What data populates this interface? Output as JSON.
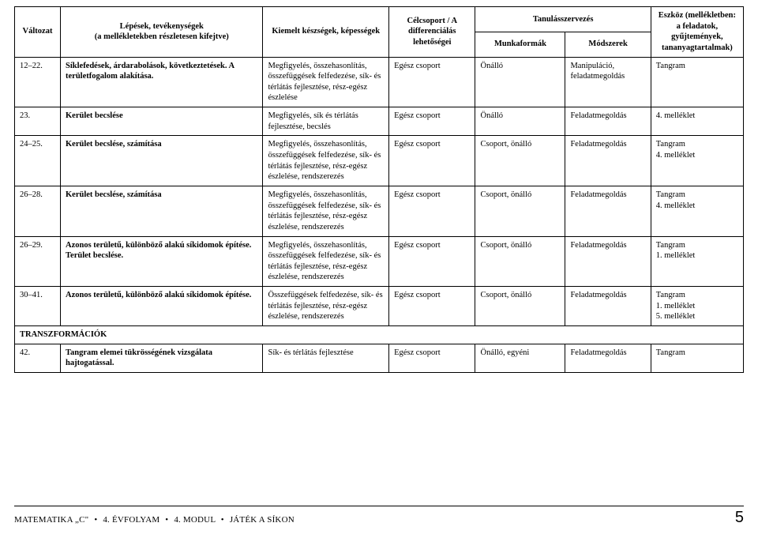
{
  "header": {
    "valtozat": "Változat",
    "lepesek_line1": "Lépések, tevékenységek",
    "lepesek_line2": "(a mellékletekben részletesen kifejtve)",
    "kiemelt": "Kiemelt készségek, képességek",
    "celcsoport": "Célcsoport / A differenciálás lehetőségei",
    "tanulasszervezes": "Tanulásszervezés",
    "munkaformak": "Munkaformák",
    "modszerek": "Módszerek",
    "eszkoz": "Eszköz (mellékletben: a feladatok, gyűjtemények, tananyagtartalmak)"
  },
  "rows": [
    {
      "num": "12–22.",
      "lepesek": "Síklefedések, árdarabolások, következtetések. A területfogalom alakítása.",
      "kiemelt": "Megfigyelés, összehasonlítás, összefüggések felfedezése, sík- és térlátás fejlesztése, rész-egész észlelése",
      "cel": "Egész csoport",
      "munka": "Önálló",
      "mod": "Manipuláció, feladatmegoldás",
      "eszkoz": "Tangram"
    },
    {
      "num": "23.",
      "lepesek": "Kerület becslése",
      "kiemelt": "Megfigyelés, sík és térlátás fejlesztése, becslés",
      "cel": "Egész csoport",
      "munka": "Önálló",
      "mod": "Feladatmegoldás",
      "eszkoz": "4. melléklet"
    },
    {
      "num": "24–25.",
      "lepesek": "Kerület becslése, számítása",
      "kiemelt": "Megfigyelés, összehasonlítás, összefüggések felfedezése, sík- és térlátás fejlesztése, rész-egész észlelése, rendszerezés",
      "cel": "Egész csoport",
      "munka": "Csoport, önálló",
      "mod": "Feladatmegoldás",
      "eszkoz": "Tangram\n4. melléklet"
    },
    {
      "num": "26–28.",
      "lepesek": "Kerület becslése, számítása",
      "kiemelt": "Megfigyelés, összehasonlítás, összefüggések felfedezése, sík- és térlátás fejlesztése, rész-egész észlelése, rendszerezés",
      "cel": "Egész csoport",
      "munka": "Csoport, önálló",
      "mod": "Feladatmegoldás",
      "eszkoz": "Tangram\n4. melléklet"
    },
    {
      "num": "26–29.",
      "lepesek": "Azonos területű, különböző alakú síkidomok építése. Terület becslése.",
      "kiemelt": "Megfigyelés, összehasonlítás, összefüggések felfedezése, sík- és térlátás fejlesztése, rész-egész észlelése, rendszerezés",
      "cel": "Egész csoport",
      "munka": "Csoport, önálló",
      "mod": "Feladatmegoldás",
      "eszkoz": "Tangram\n1. melléklet"
    },
    {
      "num": "30–41.",
      "lepesek": "Azonos területű, különböző alakú síkidomok építése.",
      "kiemelt": "Összefüggések felfedezése, sík- és térlátás fejlesztése, rész-egész észlelése, rendszerezés",
      "cel": "Egész csoport",
      "munka": "Csoport, önálló",
      "mod": "Feladatmegoldás",
      "eszkoz": "Tangram\n1. melléklet\n5. melléklet"
    }
  ],
  "section": "TRANSZFORMÁCIÓK",
  "row7": {
    "num": "42.",
    "lepesek": "Tangram elemei tükrösségének vizsgálata hajtogatással.",
    "kiemelt": "Sík- és térlátás fejlesztése",
    "cel": "Egész csoport",
    "munka": "Önálló, egyéni",
    "mod": "Feladatmegoldás",
    "eszkoz": "Tangram"
  },
  "footer": {
    "subject": "MATEMATIKA „C\"",
    "grade": "4. ÉVFOLYAM",
    "module": "4. MODUL",
    "title": "JÁTÉK A SÍKON",
    "page": "5"
  }
}
